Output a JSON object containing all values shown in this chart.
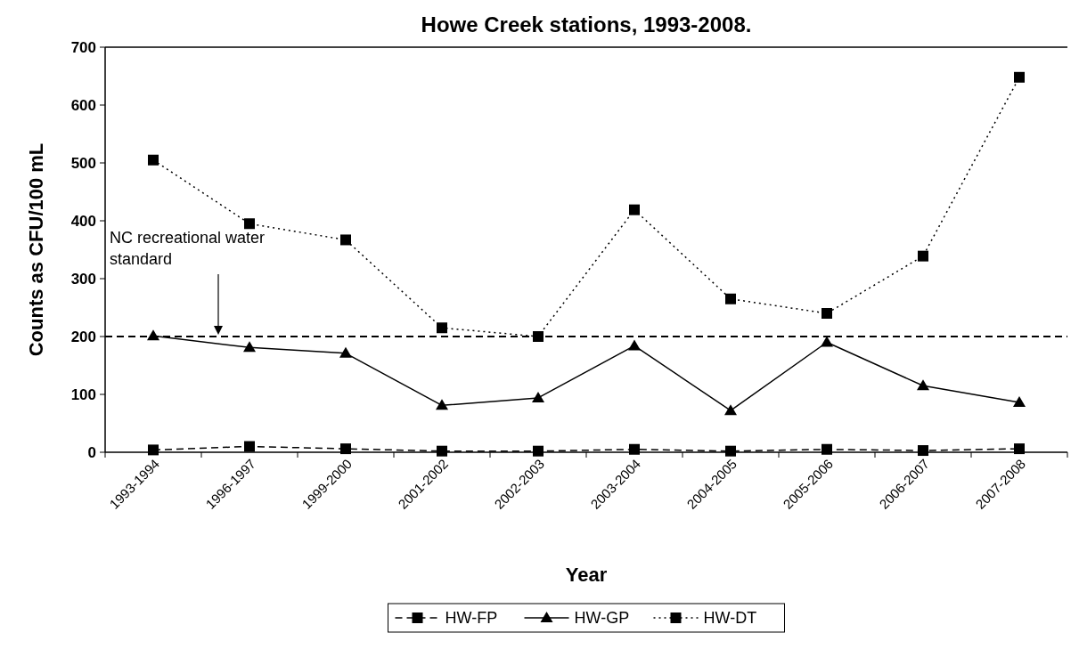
{
  "chart_data": {
    "type": "line",
    "title": "Howe Creek stations, 1993-2008.",
    "xlabel": "Year",
    "ylabel": "Counts as CFU/100 mL",
    "categories": [
      "1993-1994",
      "1996-1997",
      "1999-2000",
      "2001-2002",
      "2002-2003",
      "2003-2004",
      "2004-2005",
      "2005-2006",
      "2006-2007",
      "2007-2008"
    ],
    "series": [
      {
        "name": "HW-FP",
        "color": "#000000",
        "marker": "square",
        "line_style": "dashed",
        "values": [
          4,
          10,
          6,
          2,
          2,
          5,
          2,
          5,
          3,
          6
        ]
      },
      {
        "name": "HW-GP",
        "color": "#000000",
        "marker": "triangle",
        "line_style": "solid",
        "values": [
          201,
          181,
          171,
          81,
          94,
          184,
          72,
          190,
          115,
          86
        ]
      },
      {
        "name": "HW-DT",
        "color": "#000000",
        "marker": "square",
        "line_style": "dotted",
        "values": [
          505,
          395,
          367,
          215,
          200,
          419,
          265,
          240,
          339,
          648
        ]
      }
    ],
    "ylim": [
      0,
      700
    ],
    "yticks": [
      0,
      100,
      200,
      300,
      400,
      500,
      600,
      700
    ],
    "grid": false,
    "legend": "bottom",
    "ref_lines": [
      {
        "axis": "y",
        "value": 200,
        "label": "NC recreational water standard",
        "color": "#000000",
        "line_style": "dashed"
      }
    ]
  }
}
